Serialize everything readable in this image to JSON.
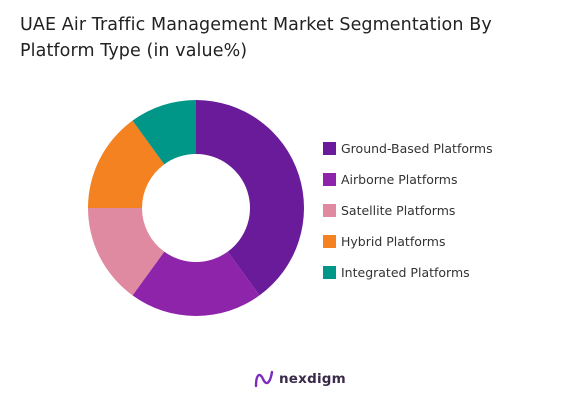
{
  "header": {
    "title_line1": "UAE Air Traffic Management Market Segmentation By",
    "title_line2": "Platform Type (in value%)"
  },
  "brand": {
    "name": "nexdigm",
    "icon": "nexdigm-logo-icon",
    "accent": "#7b2cbf"
  },
  "chart_data": {
    "type": "pie",
    "donut": true,
    "title": "UAE Air Traffic Management Market Segmentation By Platform Type (in value%)",
    "legend_position": "right",
    "categories": [
      "Ground-Based Platforms",
      "Airborne Platforms",
      "Satellite Platforms",
      "Hybrid Platforms",
      "Integrated Platforms"
    ],
    "values": [
      40,
      20,
      15,
      15,
      10
    ],
    "colors": [
      "#6a1b9a",
      "#8e24aa",
      "#e08aa2",
      "#f58220",
      "#009688"
    ]
  }
}
